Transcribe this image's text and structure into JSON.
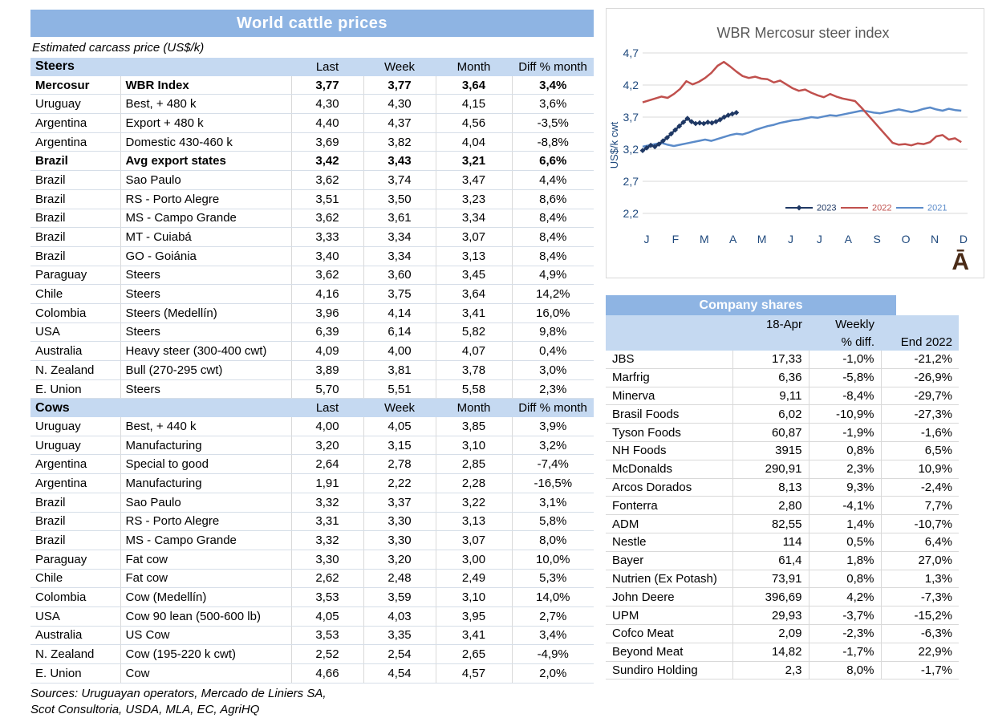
{
  "left_table": {
    "title": "World cattle prices",
    "subtitle": "Estimated carcass price (US$/k)",
    "columns": [
      "Last",
      "Week",
      "Month",
      "Diff % month"
    ],
    "sections": [
      {
        "label": "Steers",
        "rows": [
          {
            "country": "Mercosur",
            "desc": "WBR Index",
            "v": [
              "3,77",
              "3,77",
              "3,64",
              "3,4%"
            ],
            "bold": true
          },
          {
            "country": "Uruguay",
            "desc": "Best, + 480 k",
            "v": [
              "4,30",
              "4,30",
              "4,15",
              "3,6%"
            ],
            "bold": false
          },
          {
            "country": "Argentina",
            "desc": "Export + 480 k",
            "v": [
              "4,40",
              "4,37",
              "4,56",
              "-3,5%"
            ],
            "bold": false
          },
          {
            "country": "Argentina",
            "desc": "Domestic 430-460 k",
            "v": [
              "3,69",
              "3,82",
              "4,04",
              "-8,8%"
            ],
            "bold": false
          },
          {
            "country": "Brazil",
            "desc": "Avg export states",
            "v": [
              "3,42",
              "3,43",
              "3,21",
              "6,6%"
            ],
            "bold": true
          },
          {
            "country": "Brazil",
            "desc": "Sao Paulo",
            "v": [
              "3,62",
              "3,74",
              "3,47",
              "4,4%"
            ],
            "bold": false
          },
          {
            "country": "Brazil",
            "desc": "RS - Porto Alegre",
            "v": [
              "3,51",
              "3,50",
              "3,23",
              "8,6%"
            ],
            "bold": false
          },
          {
            "country": "Brazil",
            "desc": "MS - Campo Grande",
            "v": [
              "3,62",
              "3,61",
              "3,34",
              "8,4%"
            ],
            "bold": false
          },
          {
            "country": "Brazil",
            "desc": "MT - Cuiabá",
            "v": [
              "3,33",
              "3,34",
              "3,07",
              "8,4%"
            ],
            "bold": false
          },
          {
            "country": "Brazil",
            "desc": "GO - Goiánia",
            "v": [
              "3,40",
              "3,34",
              "3,13",
              "8,4%"
            ],
            "bold": false
          },
          {
            "country": "Paraguay",
            "desc": "Steers",
            "v": [
              "3,62",
              "3,60",
              "3,45",
              "4,9%"
            ],
            "bold": false
          },
          {
            "country": "Chile",
            "desc": "Steers",
            "v": [
              "4,16",
              "3,75",
              "3,64",
              "14,2%"
            ],
            "bold": false
          },
          {
            "country": "Colombia",
            "desc": "Steers (Medellín)",
            "v": [
              "3,96",
              "4,14",
              "3,41",
              "16,0%"
            ],
            "bold": false
          },
          {
            "country": "USA",
            "desc": "Steers",
            "v": [
              "6,39",
              "6,14",
              "5,82",
              "9,8%"
            ],
            "bold": false
          },
          {
            "country": "Australia",
            "desc": "Heavy steer (300-400 cwt)",
            "v": [
              "4,09",
              "4,00",
              "4,07",
              "0,4%"
            ],
            "bold": false
          },
          {
            "country": "N. Zealand",
            "desc": "Bull (270-295 cwt)",
            "v": [
              "3,89",
              "3,81",
              "3,78",
              "3,0%"
            ],
            "bold": false
          },
          {
            "country": "E. Union",
            "desc": "Steers",
            "v": [
              "5,70",
              "5,51",
              "5,58",
              "2,3%"
            ],
            "bold": false
          }
        ]
      },
      {
        "label": "Cows",
        "rows": [
          {
            "country": "Uruguay",
            "desc": "Best, + 440 k",
            "v": [
              "4,00",
              "4,05",
              "3,85",
              "3,9%"
            ],
            "bold": false
          },
          {
            "country": "Uruguay",
            "desc": "Manufacturing",
            "v": [
              "3,20",
              "3,15",
              "3,10",
              "3,2%"
            ],
            "bold": false
          },
          {
            "country": "Argentina",
            "desc": "Special to good",
            "v": [
              "2,64",
              "2,78",
              "2,85",
              "-7,4%"
            ],
            "bold": false
          },
          {
            "country": "Argentina",
            "desc": "Manufacturing",
            "v": [
              "1,91",
              "2,22",
              "2,28",
              "-16,5%"
            ],
            "bold": false
          },
          {
            "country": "Brazil",
            "desc": "Sao Paulo",
            "v": [
              "3,32",
              "3,37",
              "3,22",
              "3,1%"
            ],
            "bold": false
          },
          {
            "country": "Brazil",
            "desc": "RS - Porto Alegre",
            "v": [
              "3,31",
              "3,30",
              "3,13",
              "5,8%"
            ],
            "bold": false
          },
          {
            "country": "Brazil",
            "desc": "MS - Campo Grande",
            "v": [
              "3,32",
              "3,30",
              "3,07",
              "8,0%"
            ],
            "bold": false
          },
          {
            "country": "Paraguay",
            "desc": "Fat cow",
            "v": [
              "3,30",
              "3,20",
              "3,00",
              "10,0%"
            ],
            "bold": false
          },
          {
            "country": "Chile",
            "desc": "Fat cow",
            "v": [
              "2,62",
              "2,48",
              "2,49",
              "5,3%"
            ],
            "bold": false
          },
          {
            "country": "Colombia",
            "desc": "Cow (Medellín)",
            "v": [
              "3,53",
              "3,59",
              "3,10",
              "14,0%"
            ],
            "bold": false
          },
          {
            "country": "USA",
            "desc": "Cow 90 lean (500-600 lb)",
            "v": [
              "4,05",
              "4,03",
              "3,95",
              "2,7%"
            ],
            "bold": false
          },
          {
            "country": "Australia",
            "desc": "US Cow",
            "v": [
              "3,53",
              "3,35",
              "3,41",
              "3,4%"
            ],
            "bold": false
          },
          {
            "country": "N. Zealand",
            "desc": "Cow (195-220 k cwt)",
            "v": [
              "2,52",
              "2,54",
              "2,65",
              "-4,9%"
            ],
            "bold": false
          },
          {
            "country": "E. Union",
            "desc": "Cow",
            "v": [
              "4,66",
              "4,54",
              "4,57",
              "2,0%"
            ],
            "bold": false
          }
        ]
      }
    ],
    "sources": [
      "Sources: Uruguayan operators, Mercado de Liniers SA,",
      "Scot Consultoria, USDA, MLA, EC, AgriHQ"
    ]
  },
  "chart_data": {
    "type": "line",
    "title": "WBR Mercosur steer index",
    "ylabel": "US$/k cwt",
    "ylim": [
      2.2,
      4.7
    ],
    "y_ticks": [
      {
        "v": 4.7,
        "label": "4,7"
      },
      {
        "v": 4.2,
        "label": "4,2"
      },
      {
        "v": 3.7,
        "label": "3,7"
      },
      {
        "v": 3.2,
        "label": "3,2"
      },
      {
        "v": 2.7,
        "label": "2,7"
      },
      {
        "v": 2.2,
        "label": "2,2"
      }
    ],
    "x_labels": [
      "J",
      "F",
      "M",
      "A",
      "M",
      "J",
      "J",
      "A",
      "S",
      "O",
      "N",
      "D"
    ],
    "grid": true,
    "legend_position": "inside-bottom-right",
    "weeks_per_year": 52,
    "series": [
      {
        "name": "2023",
        "color": "#1F3864",
        "marker": true,
        "weeks_span": 15,
        "values": [
          3.18,
          3.22,
          3.26,
          3.24,
          3.28,
          3.33,
          3.38,
          3.44,
          3.5,
          3.56,
          3.62,
          3.68,
          3.63,
          3.6,
          3.61,
          3.6,
          3.62,
          3.61,
          3.63,
          3.66,
          3.7,
          3.73,
          3.75,
          3.77
        ]
      },
      {
        "name": "2022",
        "color": "#C0504D",
        "marker": false,
        "weeks_span": 51,
        "values": [
          3.93,
          3.96,
          3.99,
          4.02,
          4.0,
          4.06,
          4.14,
          4.26,
          4.21,
          4.25,
          4.31,
          4.39,
          4.5,
          4.56,
          4.49,
          4.41,
          4.34,
          4.31,
          4.33,
          4.3,
          4.29,
          4.24,
          4.27,
          4.21,
          4.15,
          4.11,
          4.13,
          4.08,
          4.04,
          4.01,
          4.06,
          4.02,
          3.99,
          3.97,
          3.95,
          3.85,
          3.74,
          3.63,
          3.52,
          3.41,
          3.3,
          3.27,
          3.28,
          3.26,
          3.29,
          3.28,
          3.31,
          3.4,
          3.42,
          3.35,
          3.37,
          3.31
        ]
      },
      {
        "name": "2021",
        "color": "#5B8BC9",
        "marker": false,
        "weeks_span": 51,
        "values": [
          3.24,
          3.26,
          3.28,
          3.3,
          3.27,
          3.25,
          3.27,
          3.29,
          3.31,
          3.33,
          3.35,
          3.33,
          3.36,
          3.39,
          3.42,
          3.44,
          3.43,
          3.46,
          3.5,
          3.53,
          3.56,
          3.58,
          3.61,
          3.63,
          3.65,
          3.66,
          3.68,
          3.7,
          3.69,
          3.71,
          3.73,
          3.72,
          3.74,
          3.76,
          3.78,
          3.8,
          3.79,
          3.77,
          3.76,
          3.78,
          3.8,
          3.82,
          3.8,
          3.78,
          3.8,
          3.83,
          3.85,
          3.82,
          3.8,
          3.83,
          3.81,
          3.8
        ]
      }
    ],
    "colors": {
      "grid": "#D9D9D9",
      "axis_text": "#1F497D",
      "title_text": "#595959"
    },
    "logo_glyph": "Ā",
    "logo_color": "#4A2B17"
  },
  "company_shares": {
    "title": "Company shares",
    "header": {
      "date": "18-Apr",
      "weekly_line1": "Weekly",
      "weekly_line2": "% diff.",
      "end": "End 2022"
    },
    "rows": [
      {
        "name": "JBS",
        "price": "17,33",
        "weekly": "-1,0%",
        "end": "-21,2%"
      },
      {
        "name": "Marfrig",
        "price": "6,36",
        "weekly": "-5,8%",
        "end": "-26,9%"
      },
      {
        "name": "Minerva",
        "price": "9,11",
        "weekly": "-8,4%",
        "end": "-29,7%"
      },
      {
        "name": "Brasil Foods",
        "price": "6,02",
        "weekly": "-10,9%",
        "end": "-27,3%"
      },
      {
        "name": "Tyson Foods",
        "price": "60,87",
        "weekly": "-1,9%",
        "end": "-1,6%"
      },
      {
        "name": "NH Foods",
        "price": "3915",
        "weekly": "0,8%",
        "end": "6,5%"
      },
      {
        "name": "McDonalds",
        "price": "290,91",
        "weekly": "2,3%",
        "end": "10,9%"
      },
      {
        "name": "Arcos Dorados",
        "price": "8,13",
        "weekly": "9,3%",
        "end": "-2,4%"
      },
      {
        "name": "Fonterra",
        "price": "2,80",
        "weekly": "-4,1%",
        "end": "7,7%"
      },
      {
        "name": "ADM",
        "price": "82,55",
        "weekly": "1,4%",
        "end": "-10,7%"
      },
      {
        "name": "Nestle",
        "price": "114",
        "weekly": "0,5%",
        "end": "6,4%"
      },
      {
        "name": "Bayer",
        "price": "61,4",
        "weekly": "1,8%",
        "end": "27,0%"
      },
      {
        "name": "Nutrien (Ex Potash)",
        "price": "73,91",
        "weekly": "0,8%",
        "end": "1,3%"
      },
      {
        "name": "John Deere",
        "price": "396,69",
        "weekly": "4,2%",
        "end": "-7,3%"
      },
      {
        "name": "UPM",
        "price": "29,93",
        "weekly": "-3,7%",
        "end": "-15,2%"
      },
      {
        "name": "Cofco Meat",
        "price": "2,09",
        "weekly": "-2,3%",
        "end": "-6,3%"
      },
      {
        "name": "Beyond Meat",
        "price": "14,82",
        "weekly": "-1,7%",
        "end": "22,9%"
      },
      {
        "name": "Sundiro Holding",
        "price": "2,3",
        "weekly": "8,0%",
        "end": "-1,7%"
      }
    ]
  }
}
